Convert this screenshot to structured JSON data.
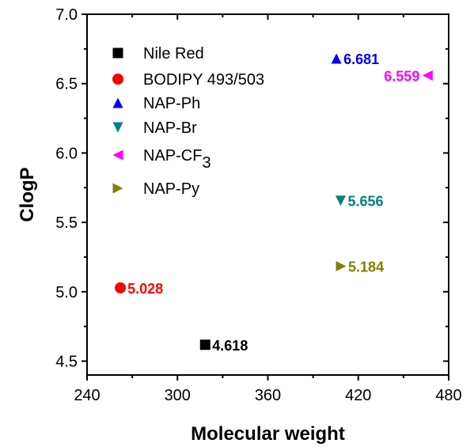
{
  "chart_data": {
    "type": "scatter",
    "xlabel": "Molecular weight",
    "ylabel": "ClogP",
    "xlim": [
      240,
      480
    ],
    "ylim": [
      4.4,
      7.0
    ],
    "xticks": [
      "240",
      "300",
      "360",
      "420",
      "480"
    ],
    "yticks": [
      "4.5",
      "5.0",
      "5.5",
      "6.0",
      "6.5",
      "7.0"
    ],
    "grid": false,
    "legend_position": "top-left",
    "series": [
      {
        "name": "Nile Red",
        "marker": "square",
        "color": "#000000",
        "x": 318.4,
        "y": 4.618,
        "label": "4.618"
      },
      {
        "name": "BODIPY 493/503",
        "marker": "circle",
        "color": "#ff0000",
        "x": 262.1,
        "y": 5.028,
        "label": "5.028"
      },
      {
        "name": "NAP-Ph",
        "marker": "triangle-up",
        "color": "#0000ff",
        "x": 405.5,
        "y": 6.681,
        "label": "6.681"
      },
      {
        "name": "NAP-Br",
        "marker": "triangle-down",
        "color": "#008080",
        "x": 408.3,
        "y": 5.656,
        "label": "5.656"
      },
      {
        "name": "NAP-CF",
        "name_sub": "3",
        "marker": "triangle-left",
        "color": "#ff00ff",
        "x": 466.0,
        "y": 6.559,
        "label": "6.559"
      },
      {
        "name": "NAP-Py",
        "marker": "triangle-right",
        "color": "#808000",
        "x": 408.6,
        "y": 5.184,
        "label": "5.184"
      }
    ]
  }
}
